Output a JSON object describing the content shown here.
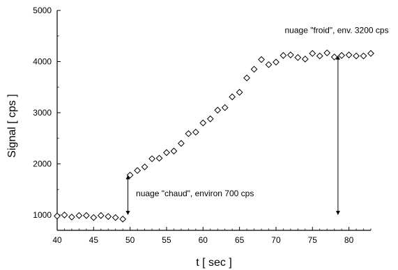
{
  "chart_data": {
    "type": "scatter",
    "title": "",
    "xlabel": "t  [ sec ]",
    "ylabel": "Signal  [ cps ]",
    "xlim": [
      40,
      83
    ],
    "ylim": [
      700,
      5000
    ],
    "x_ticks": [
      40,
      45,
      50,
      55,
      60,
      65,
      70,
      75,
      80
    ],
    "y_ticks": [
      1000,
      2000,
      3000,
      4000,
      5000
    ],
    "grid": false,
    "marker": "diamond-open",
    "series": [
      {
        "x": [
          40,
          41,
          42,
          43,
          44,
          45,
          46,
          47,
          48,
          49,
          50,
          51,
          52,
          53,
          54,
          55,
          56,
          57,
          58,
          59,
          60,
          61,
          62,
          63,
          64,
          65,
          66,
          67,
          68,
          69,
          70,
          71,
          72,
          73,
          74,
          75,
          76,
          77,
          78,
          79,
          80,
          81,
          82,
          83
        ],
        "y": [
          980,
          1000,
          960,
          990,
          990,
          950,
          990,
          970,
          950,
          920,
          1780,
          1870,
          1940,
          2100,
          2110,
          2220,
          2250,
          2400,
          2590,
          2620,
          2800,
          2880,
          3050,
          3100,
          3310,
          3400,
          3680,
          3850,
          4040,
          3940,
          3990,
          4120,
          4130,
          4080,
          4050,
          4160,
          4110,
          4170,
          4090,
          4120,
          4130,
          4110,
          4110,
          4160
        ]
      }
    ],
    "annotations": [
      {
        "text": "nuage \"chaud\", environ 700 cps",
        "arrow_x": 49.7,
        "arrow_y_from": 1780,
        "arrow_y_to": 1000,
        "label_x": 50.8,
        "label_y": 1370
      },
      {
        "text": "nuage \"froid\", env. 3200 cps",
        "arrow_x": 78.5,
        "arrow_y_from": 4120,
        "arrow_y_to": 1000,
        "label_x": 71.2,
        "label_y": 4560
      }
    ]
  }
}
